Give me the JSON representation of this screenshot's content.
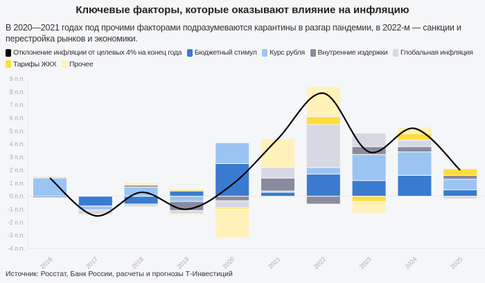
{
  "title": "Ключевые факторы, которые оказывают влияние на инфляцию",
  "subtitle": "В 2020—2021 годах под прочими факторами подразумеваются карантины в разгар пандемии, в 2022-м — санкции и перестройка рынков и экономики.",
  "source": "Источник: Росстат, Банк России, расчеты и прогнозы Т-Инвестиций",
  "chart_data": {
    "type": "bar",
    "stacked": true,
    "categories": [
      "2016",
      "2017",
      "2018",
      "2019",
      "2020",
      "2021",
      "2022",
      "2023",
      "2024",
      "2025"
    ],
    "ylim": [
      -4,
      9
    ],
    "yticks": [
      "-4 п.п.",
      "-3 п.п.",
      "-2 п.п.",
      "-1 п.п.",
      "0 п.п.",
      "1 п.п.",
      "2 п.п.",
      "3 п.п.",
      "4 п.п.",
      "5 п.п.",
      "6 п.п.",
      "7 п.п.",
      "8 п.п.",
      "9 п.п."
    ],
    "series": [
      {
        "name": "Бюджетный стимул",
        "color": "#3a7bd0",
        "values": [
          -0.1,
          -0.75,
          -0.6,
          0.4,
          2.5,
          0.3,
          1.7,
          1.2,
          1.6,
          0.5
        ]
      },
      {
        "name": "Курс рубля",
        "color": "#9cc4f2",
        "values": [
          1.4,
          -0.3,
          0.7,
          -0.4,
          1.6,
          0.1,
          0.5,
          2.0,
          1.8,
          0.8
        ]
      },
      {
        "name": "Внутренние издержки",
        "color": "#8a8b9e",
        "values": [
          0,
          0,
          0.15,
          -0.7,
          -0.35,
          1.0,
          -0.6,
          0.6,
          0.4,
          0.3
        ]
      },
      {
        "name": "Глобальная инфляция",
        "color": "#d8d8e4",
        "values": [
          0,
          -0.35,
          -0.2,
          -0.25,
          -0.55,
          0.8,
          3.3,
          1.05,
          0.5,
          -0.2
        ]
      },
      {
        "name": "Тарифы ЖКХ",
        "color": "#fedd3a",
        "values": [
          0.1,
          0,
          0,
          0.1,
          -0.1,
          0,
          0.6,
          -0.4,
          0.5,
          0.5
        ]
      },
      {
        "name": "Прочее",
        "color": "#fff1b8",
        "values": [
          0,
          0,
          0.2,
          -0.1,
          -2.2,
          2.2,
          2.3,
          -0.9,
          0.5,
          0.05
        ]
      }
    ],
    "line": {
      "name": "Отклонение инфляции от целевых 4% на конец года",
      "color": "#000000",
      "values": [
        1.4,
        -1.5,
        0.3,
        -1.0,
        0.9,
        4.4,
        7.9,
        3.4,
        5.2,
        2.0
      ]
    },
    "legend_placement": "top"
  }
}
